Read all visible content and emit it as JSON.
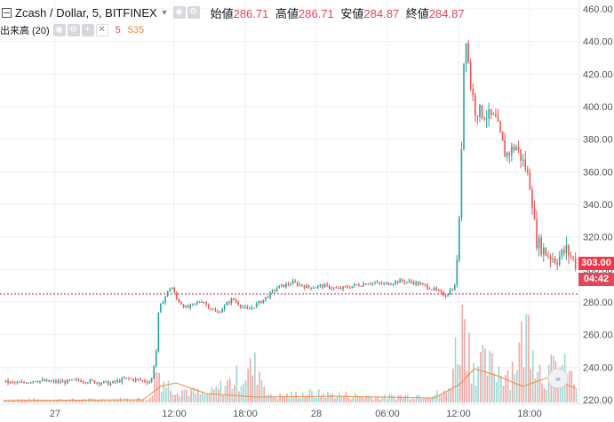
{
  "legend": {
    "symbol": "Zcash / Dollar, 5, BITFINEX",
    "open_label": "始値",
    "open_value": "286.71",
    "high_label": "高値",
    "high_value": "286.71",
    "low_label": "安値",
    "low_value": "284.87",
    "close_label": "終値",
    "close_value": "284.87",
    "volume_label": "出来高 (20)",
    "volume_value": "5",
    "volume_ma": "535"
  },
  "price_tag": {
    "price": "303.00",
    "countdown": "04:42"
  },
  "colors": {
    "up": "#26a69a",
    "down": "#ef5350",
    "ma": "#f08a3c",
    "price_tag": "#f23645",
    "hline": "#c2185b"
  },
  "chart_data": {
    "type": "candlestick",
    "y_ticks": [
      "460.00",
      "440.00",
      "420.00",
      "400.00",
      "380.00",
      "360.00",
      "340.00",
      "320.00",
      "300.00",
      "280.00",
      "260.00",
      "240.00",
      "220.00"
    ],
    "ylim": [
      218,
      462
    ],
    "x_ticks": [
      "27",
      "12:00",
      "18:00",
      "28",
      "06:00",
      "12:00",
      "18:00"
    ],
    "current_price": 303.0,
    "horizontal_line": 285,
    "price_path": [
      {
        "t": 0,
        "p": 231
      },
      {
        "t": 6,
        "p": 230
      },
      {
        "t": 12,
        "p": 232
      },
      {
        "t": 18,
        "p": 231
      },
      {
        "t": 24,
        "p": 231
      },
      {
        "t": 30,
        "p": 232
      },
      {
        "t": 36,
        "p": 231
      },
      {
        "t": 42,
        "p": 230
      },
      {
        "t": 48,
        "p": 233
      },
      {
        "t": 54,
        "p": 232
      },
      {
        "t": 58,
        "p": 231
      },
      {
        "t": 60,
        "p": 250
      },
      {
        "t": 61,
        "p": 275
      },
      {
        "t": 63,
        "p": 282
      },
      {
        "t": 66,
        "p": 290
      },
      {
        "t": 68,
        "p": 282
      },
      {
        "t": 72,
        "p": 276
      },
      {
        "t": 78,
        "p": 281
      },
      {
        "t": 84,
        "p": 273
      },
      {
        "t": 90,
        "p": 282
      },
      {
        "t": 96,
        "p": 275
      },
      {
        "t": 102,
        "p": 281
      },
      {
        "t": 108,
        "p": 289
      },
      {
        "t": 114,
        "p": 292
      },
      {
        "t": 120,
        "p": 289
      },
      {
        "t": 126,
        "p": 290
      },
      {
        "t": 132,
        "p": 288
      },
      {
        "t": 138,
        "p": 290
      },
      {
        "t": 144,
        "p": 292
      },
      {
        "t": 150,
        "p": 291
      },
      {
        "t": 156,
        "p": 293
      },
      {
        "t": 162,
        "p": 292
      },
      {
        "t": 168,
        "p": 289
      },
      {
        "t": 174,
        "p": 284
      },
      {
        "t": 178,
        "p": 290
      },
      {
        "t": 180,
        "p": 335
      },
      {
        "t": 181,
        "p": 405
      },
      {
        "t": 182,
        "p": 450
      },
      {
        "t": 184,
        "p": 415
      },
      {
        "t": 186,
        "p": 398
      },
      {
        "t": 190,
        "p": 395
      },
      {
        "t": 194,
        "p": 392
      },
      {
        "t": 198,
        "p": 370
      },
      {
        "t": 202,
        "p": 376
      },
      {
        "t": 206,
        "p": 362
      },
      {
        "t": 208,
        "p": 350
      },
      {
        "t": 210,
        "p": 318
      },
      {
        "t": 214,
        "p": 310
      },
      {
        "t": 218,
        "p": 306
      },
      {
        "t": 222,
        "p": 312
      },
      {
        "t": 226,
        "p": 303
      }
    ],
    "volume_path": [
      {
        "t": 0,
        "v": 3
      },
      {
        "t": 30,
        "v": 3
      },
      {
        "t": 58,
        "v": 4
      },
      {
        "t": 60,
        "v": 40
      },
      {
        "t": 62,
        "v": 30
      },
      {
        "t": 64,
        "v": 20
      },
      {
        "t": 70,
        "v": 15
      },
      {
        "t": 80,
        "v": 8
      },
      {
        "t": 100,
        "v": 40
      },
      {
        "t": 105,
        "v": 6
      },
      {
        "t": 120,
        "v": 10
      },
      {
        "t": 150,
        "v": 6
      },
      {
        "t": 175,
        "v": 10
      },
      {
        "t": 180,
        "v": 80
      },
      {
        "t": 182,
        "v": 110
      },
      {
        "t": 184,
        "v": 50
      },
      {
        "t": 190,
        "v": 40
      },
      {
        "t": 200,
        "v": 35
      },
      {
        "t": 208,
        "v": 90
      },
      {
        "t": 212,
        "v": 30
      },
      {
        "t": 220,
        "v": 40
      },
      {
        "t": 226,
        "v": 20
      }
    ],
    "ma_path": [
      {
        "t": 0,
        "v": 2
      },
      {
        "t": 55,
        "v": 3
      },
      {
        "t": 62,
        "v": 18
      },
      {
        "t": 68,
        "v": 22
      },
      {
        "t": 80,
        "v": 10
      },
      {
        "t": 100,
        "v": 6
      },
      {
        "t": 130,
        "v": 7
      },
      {
        "t": 170,
        "v": 5
      },
      {
        "t": 180,
        "v": 20
      },
      {
        "t": 186,
        "v": 38
      },
      {
        "t": 195,
        "v": 30
      },
      {
        "t": 205,
        "v": 18
      },
      {
        "t": 215,
        "v": 28
      },
      {
        "t": 226,
        "v": 16
      }
    ]
  }
}
